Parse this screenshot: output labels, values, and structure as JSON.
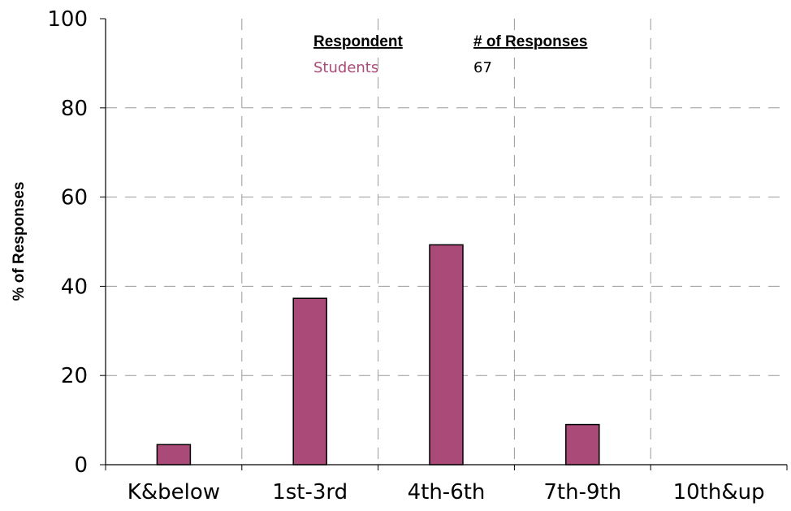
{
  "chart_data": {
    "type": "bar",
    "categories": [
      "K&below",
      "1st-3rd",
      "4th-6th",
      "7th-9th",
      "10th&up"
    ],
    "series": [
      {
        "name": "Students",
        "values": [
          4.5,
          37.3,
          49.3,
          9.0,
          0
        ]
      }
    ],
    "ylabel": "% of Responses",
    "xlabel": "",
    "ylim": [
      0,
      100
    ],
    "yticks": [
      "0",
      "20",
      "40",
      "60",
      "80",
      "100"
    ],
    "grid": true,
    "legend": {
      "position": "top-center",
      "headers": {
        "respondent": "Respondent",
        "responses": "# of Responses"
      },
      "rows": [
        {
          "respondent": "Students",
          "responses": "67"
        }
      ]
    },
    "colors": {
      "bar": "#aa4a78",
      "legend_respondent": "#aa4a78",
      "grid": "#999999"
    }
  }
}
